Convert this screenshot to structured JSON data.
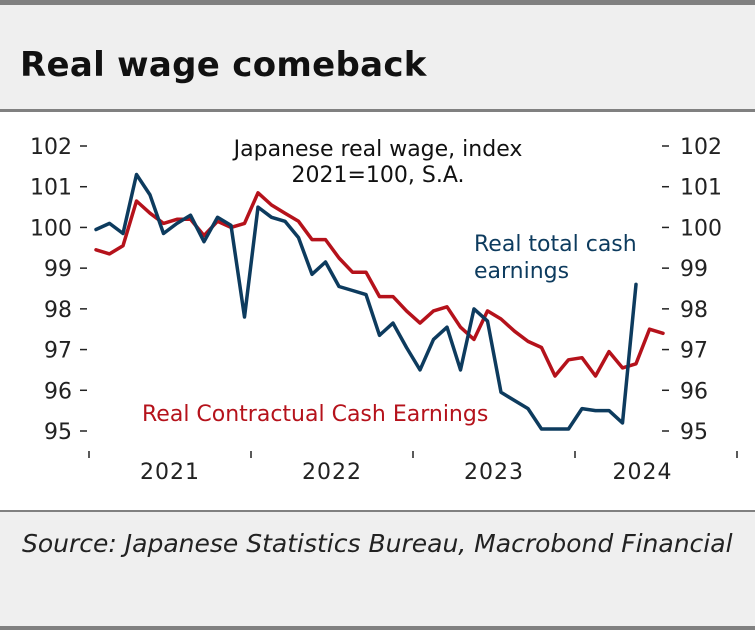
{
  "header": {
    "title": "Real wage comeback"
  },
  "footer": {
    "source": "Source: Japanese Statistics Bureau, Macrobond Financial"
  },
  "chart_data": {
    "type": "line",
    "title": "Japanese real wage, index",
    "subtitle": "2021=100, S.A.",
    "xlabel": "",
    "ylabel": "",
    "ylim": [
      94.6,
      102.4
    ],
    "y_ticks": [
      95,
      96,
      97,
      98,
      99,
      100,
      101,
      102
    ],
    "x_tick_labels": [
      "2021",
      "2022",
      "2023",
      "2024"
    ],
    "grid": false,
    "legend": "inline labels",
    "colors": {
      "total": "#0d3b5e",
      "contractual": "#b5121b",
      "axis": "#222222"
    },
    "series": [
      {
        "name": "Real total cash earnings",
        "label_lines": [
          "Real total cash",
          "earnings"
        ],
        "color": "#0d3b5e",
        "start": "2021-01",
        "values": [
          99.95,
          100.1,
          99.85,
          101.3,
          100.8,
          99.85,
          100.1,
          100.3,
          99.65,
          100.25,
          100.05,
          97.8,
          100.5,
          100.25,
          100.15,
          99.75,
          98.85,
          99.15,
          98.55,
          98.45,
          98.35,
          97.35,
          97.65,
          97.05,
          96.5,
          97.25,
          97.55,
          96.5,
          98.0,
          97.7,
          95.95,
          95.75,
          95.55,
          95.05,
          95.05,
          95.05,
          95.55,
          95.5,
          95.5,
          95.2,
          98.6
        ]
      },
      {
        "name": "Real Contractual Cash Earnings",
        "label_lines": [
          "Real Contractual Cash Earnings"
        ],
        "color": "#b5121b",
        "start": "2021-01",
        "values": [
          99.45,
          99.35,
          99.55,
          100.65,
          100.35,
          100.1,
          100.2,
          100.2,
          99.8,
          100.15,
          100.0,
          100.1,
          100.85,
          100.55,
          100.35,
          100.15,
          99.7,
          99.7,
          99.25,
          98.9,
          98.9,
          98.3,
          98.3,
          97.95,
          97.65,
          97.95,
          98.05,
          97.55,
          97.25,
          97.95,
          97.75,
          97.45,
          97.2,
          97.05,
          96.35,
          96.75,
          96.8,
          96.35,
          96.95,
          96.55,
          96.65,
          97.5,
          97.4
        ]
      }
    ]
  }
}
